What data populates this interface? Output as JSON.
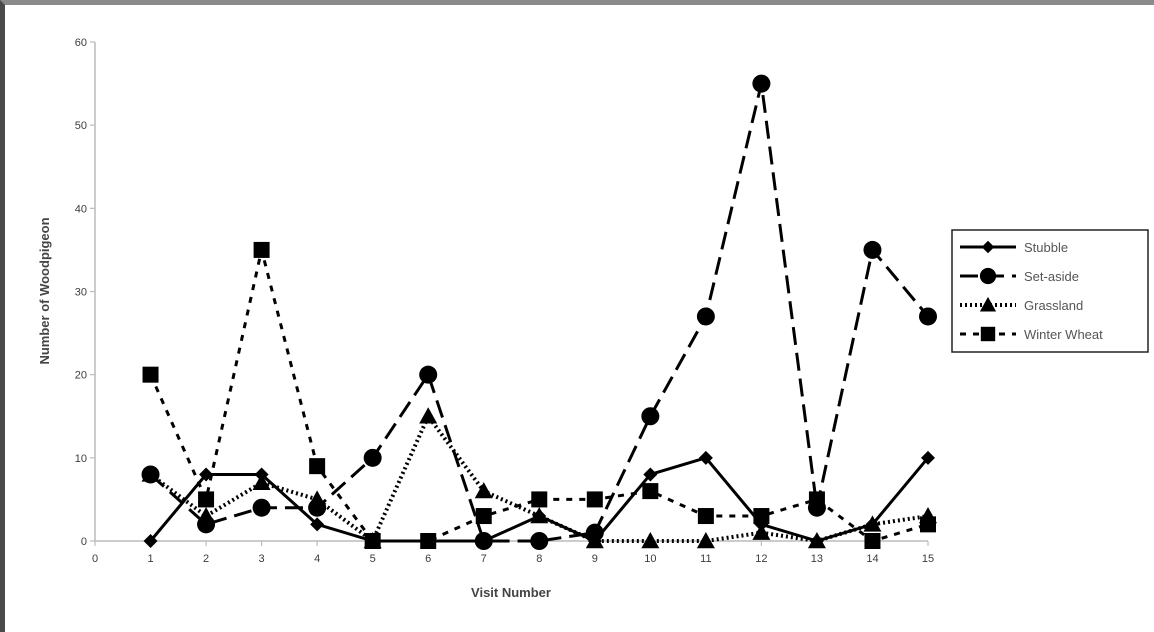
{
  "chart_data": {
    "type": "line",
    "xlabel": "Visit Number",
    "ylabel": "Number of Woodpigeon",
    "xlim": [
      0,
      15
    ],
    "ylim": [
      0,
      60
    ],
    "x_ticks": [
      0,
      1,
      2,
      3,
      4,
      5,
      6,
      7,
      8,
      9,
      10,
      11,
      12,
      13,
      14,
      15
    ],
    "y_ticks": [
      0,
      10,
      20,
      30,
      40,
      50,
      60
    ],
    "grid": false,
    "legend_position": "right",
    "x": [
      1,
      2,
      3,
      4,
      5,
      6,
      7,
      8,
      9,
      10,
      11,
      12,
      13,
      14,
      15
    ],
    "series": [
      {
        "name": "Stubble",
        "marker": "diamond",
        "dash": "solid",
        "values": [
          0,
          8,
          8,
          2,
          0,
          0,
          0,
          3,
          0,
          8,
          10,
          2,
          0,
          2,
          10
        ]
      },
      {
        "name": "Set-aside",
        "marker": "circle",
        "dash": "long-dash",
        "values": [
          8,
          2,
          4,
          4,
          10,
          20,
          0,
          0,
          1,
          15,
          27,
          55,
          4,
          35,
          27
        ]
      },
      {
        "name": "Grassland",
        "marker": "triangle",
        "dash": "dotted",
        "values": [
          8,
          3,
          7,
          5,
          0,
          15,
          6,
          3,
          0,
          0,
          0,
          1,
          0,
          2,
          3
        ]
      },
      {
        "name": "Winter Wheat",
        "marker": "square",
        "dash": "short-dash",
        "values": [
          20,
          5,
          35,
          9,
          0,
          0,
          3,
          5,
          5,
          6,
          3,
          3,
          5,
          0,
          2
        ]
      }
    ]
  }
}
